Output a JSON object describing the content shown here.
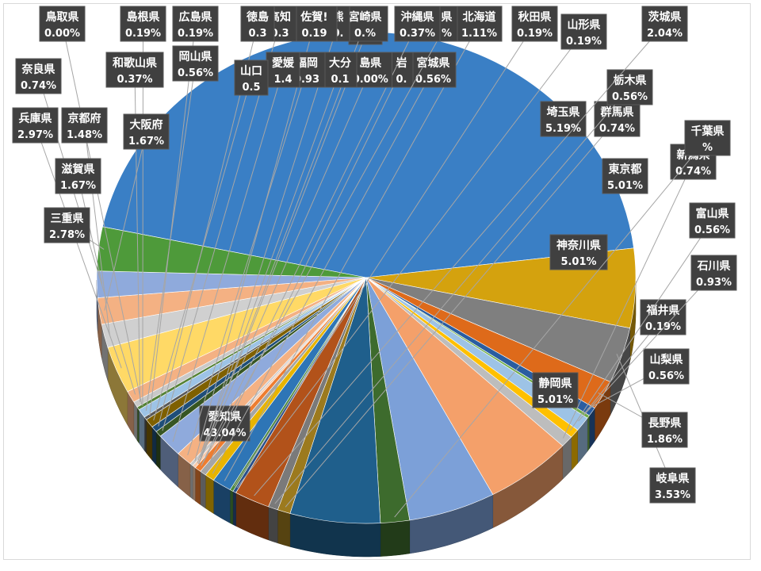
{
  "chart_data": {
    "type": "pie",
    "title": "",
    "style": "3d-exploded",
    "legend": "none",
    "slices": [
      {
        "label": "愛知県",
        "value": 43.04,
        "color": "#3a7fc5"
      },
      {
        "label": "静岡県",
        "value": 5.01,
        "color": "#d4a20e"
      },
      {
        "label": "岐阜県",
        "value": 3.53,
        "color": "#7f7f7f"
      },
      {
        "label": "長野県",
        "value": 1.86,
        "color": "#de6a1a"
      },
      {
        "label": "山梨県",
        "value": 0.56,
        "color": "#2a5da0"
      },
      {
        "label": "福井県",
        "value": 0.19,
        "color": "#70ad47"
      },
      {
        "label": "石川県",
        "value": 0.93,
        "color": "#9dc3e6"
      },
      {
        "label": "富山県",
        "value": 0.56,
        "color": "#ffc000"
      },
      {
        "label": "新潟県",
        "value": 0.74,
        "color": "#bdbdbd"
      },
      {
        "label": "神奈川県",
        "value": 5.01,
        "color": "#f4a06a"
      },
      {
        "label": "東京都",
        "value": 5.01,
        "color": "#7ca0d8"
      },
      {
        "label": "千葉県",
        "value": 1.67,
        "color": "#3d6b2d"
      },
      {
        "label": "埼玉県",
        "value": 5.19,
        "color": "#1f5f8c"
      },
      {
        "label": "群馬県",
        "value": 0.74,
        "color": "#9c7a1e"
      },
      {
        "label": "栃木県",
        "value": 0.56,
        "color": "#7a7a7a"
      },
      {
        "label": "茨城県",
        "value": 2.04,
        "color": "#b2521a"
      },
      {
        "label": "山形県",
        "value": 0.19,
        "color": "#2a4f8a"
      },
      {
        "label": "秋田県",
        "value": 0.19,
        "color": "#4a8a3a"
      },
      {
        "label": "北海道",
        "value": 1.11,
        "color": "#2e75b6"
      },
      {
        "label": "宮城県",
        "value": 0.56,
        "color": "#e8b400"
      },
      {
        "label": "岩手県",
        "value": 0.37,
        "color": "#a5a5a5"
      },
      {
        "label": "沖縄県",
        "value": 0.37,
        "color": "#ed7d31"
      },
      {
        "label": "鹿児島県",
        "value": 0.0,
        "color": "#4472c4"
      },
      {
        "label": "宮崎県",
        "value": 0.0,
        "color": "#264478"
      },
      {
        "label": "熊本県",
        "value": 0.0,
        "color": "#ffd966"
      },
      {
        "label": "大分県",
        "value": 0.19,
        "color": "#f8cbad"
      },
      {
        "label": "佐賀県",
        "value": 0.19,
        "color": "#c9c9c9"
      },
      {
        "label": "福岡県",
        "value": 0.93,
        "color": "#f4b183"
      },
      {
        "label": "愛媛県",
        "value": 1.48,
        "color": "#8faadc"
      },
      {
        "label": "高知県",
        "value": 0.37,
        "color": "#375623"
      },
      {
        "label": "徳島県",
        "value": 0.37,
        "color": "#1f4e79"
      },
      {
        "label": "山口県",
        "value": 0.56,
        "color": "#7f6000"
      },
      {
        "label": "広島県",
        "value": 0.19,
        "color": "#595959"
      },
      {
        "label": "岡山県",
        "value": 0.56,
        "color": "#9dc3e6"
      },
      {
        "label": "島根県",
        "value": 0.19,
        "color": "#548235"
      },
      {
        "label": "鳥取県",
        "value": 0.0,
        "color": "#bf9000"
      },
      {
        "label": "和歌山県",
        "value": 0.37,
        "color": "#c9c9c9"
      },
      {
        "label": "奈良県",
        "value": 0.74,
        "color": "#f4b183"
      },
      {
        "label": "兵庫県",
        "value": 2.97,
        "color": "#ffd966"
      },
      {
        "label": "京都府",
        "value": 1.48,
        "color": "#d0d0d0"
      },
      {
        "label": "大阪府",
        "value": 1.67,
        "color": "#f4b183"
      },
      {
        "label": "滋賀県",
        "value": 1.67,
        "color": "#8faadc"
      },
      {
        "label": "三重県",
        "value": 2.78,
        "color": "#4e9a3a"
      }
    ],
    "labels": [
      {
        "text": "愛知県",
        "value_text": "43.04%"
      },
      {
        "text": "静岡県",
        "value_text": "5.01%"
      },
      {
        "text": "岐阜県",
        "value_text": "3.53%"
      },
      {
        "text": "長野県",
        "value_text": "1.86%"
      },
      {
        "text": "山梨県",
        "value_text": "0.56%"
      },
      {
        "text": "福井県",
        "value_text": "0.19%"
      },
      {
        "text": "石川県",
        "value_text": "0.93%"
      },
      {
        "text": "富山県",
        "value_text": "0.56%"
      },
      {
        "text": "新潟県",
        "value_text": "0.74%"
      },
      {
        "text": "神奈川県",
        "value_text": "5.01%"
      },
      {
        "text": "東京都",
        "value_text": "5.01%"
      },
      {
        "text": "千葉県",
        "value_text": "%"
      },
      {
        "text": "埼玉県",
        "value_text": "5.19%"
      },
      {
        "text": "群馬県",
        "value_text": "0.74%"
      },
      {
        "text": "栃木県",
        "value_text": "0.56%"
      },
      {
        "text": "茨城県",
        "value_text": "2.04%"
      },
      {
        "text": "山形県",
        "value_text": "0.19%"
      },
      {
        "text": "秋田県",
        "value_text": "0.19%"
      },
      {
        "text": "北海道",
        "value_text": "1.11%"
      },
      {
        "text": "宮城県",
        "value_text": "0.56%"
      },
      {
        "text": "岩",
        "value_text": "0."
      },
      {
        "text": "県",
        "value_text": "%"
      },
      {
        "text": "沖縄県",
        "value_text": "0.37%"
      },
      {
        "text": "鹿児",
        "value_text": ""
      },
      {
        "text": "島県",
        "value_text": "0.00%"
      },
      {
        "text": "宮崎県",
        "value_text": "0.%"
      },
      {
        "text": "熊",
        "value_text": "0."
      },
      {
        "text": "佐賀!",
        "value_text": "0.19"
      },
      {
        "text": "高知",
        "value_text": "0.3"
      },
      {
        "text": "徳島",
        "value_text": "0.3"
      },
      {
        "text": "大分",
        "value_text": "0.1"
      },
      {
        "text": "福岡",
        "value_text": "0.93"
      },
      {
        "text": "愛媛",
        "value_text": "1.4"
      },
      {
        "text": "山口",
        "value_text": "0.5"
      },
      {
        "text": "広島県",
        "value_text": "0.19%"
      },
      {
        "text": "岡山県",
        "value_text": "0.56%"
      },
      {
        "text": "島根県",
        "value_text": "0.19%"
      },
      {
        "text": "鳥取県",
        "value_text": "0.00%"
      },
      {
        "text": "和歌山県",
        "value_text": "0.37%"
      },
      {
        "text": "奈良県",
        "value_text": "0.74%"
      },
      {
        "text": "兵庫県",
        "value_text": "2.97%"
      },
      {
        "text": "京都府",
        "value_text": "1.48%"
      },
      {
        "text": "大阪府",
        "value_text": "1.67%"
      },
      {
        "text": "滋賀県",
        "value_text": "1.67%"
      },
      {
        "text": "三重県",
        "value_text": "2.78%"
      }
    ]
  }
}
